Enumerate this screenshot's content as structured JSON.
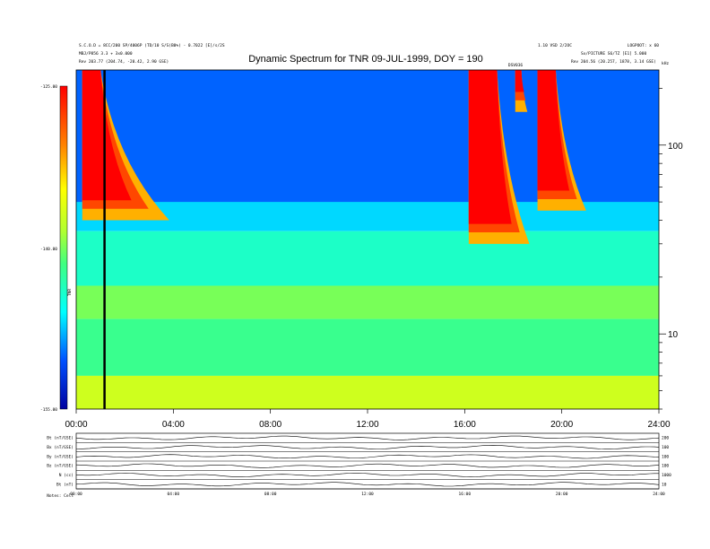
{
  "chart_data": {
    "type": "heatmap",
    "title": "Dynamic Spectrum for TNR 09-JUL-1999, DOY = 190",
    "header_left": [
      "S.C.O.D = 8CC/200 SP/4006P (TD/10 S/S(B0%) - 0.7022 [E]/s/2S",
      "MBJ/P856 3.3 + 3x0.000",
      "Rev    203.77 (204.74, -20.42, 2.90 GSE)"
    ],
    "header_right": [
      "1.10 VSD 2/2OC",
      "LOGPOOT: x 60",
      "Sx/PICTURE S6/TZ [E1] 5.000",
      "Rev    204.56 (20.257, 1878, 3.14 GSE)"
    ],
    "colorbar": {
      "label": "TNR",
      "max_label": "-125.00",
      "mid_label": "-140.00",
      "min_label": "-155.00",
      "range": [
        -155,
        -125
      ]
    },
    "x_tick_labels": [
      "00:00",
      "04:00",
      "08:00",
      "12:00",
      "16:00",
      "20:00",
      "24:00"
    ],
    "xlim": [
      "00:00",
      "24:00"
    ],
    "y_axis": {
      "scale": "log",
      "unit": "kHz",
      "tick_labels": [
        "100",
        "10"
      ],
      "ylim": [
        4,
        250
      ]
    },
    "event_marker_label": "DSV036",
    "vertical_marker_time": "01:10",
    "bands": [
      {
        "name": "high",
        "f_range": [
          40,
          250
        ],
        "level": -150
      },
      {
        "name": "cyan",
        "f_range": [
          35,
          50
        ],
        "level": -147
      },
      {
        "name": "green",
        "f_range": [
          18,
          35
        ],
        "level": -144
      },
      {
        "name": "yellow",
        "f_range": [
          12,
          18
        ],
        "level": -140
      },
      {
        "name": "low",
        "f_range": [
          6,
          12
        ],
        "level": -142
      },
      {
        "name": "floor",
        "f_range": [
          4,
          6
        ],
        "level": -137
      }
    ],
    "bursts": [
      {
        "start": "00:15",
        "peak": "01:00",
        "end": "03:50",
        "f_low": 40
      },
      {
        "start": "16:10",
        "peak": "17:20",
        "end": "18:40",
        "f_low": 30
      },
      {
        "start": "18:05",
        "peak": "18:20",
        "end": "18:35",
        "f_low": 150
      },
      {
        "start": "19:00",
        "peak": "19:45",
        "end": "21:00",
        "f_low": 45
      }
    ],
    "lower_panel": {
      "left_labels": [
        "Bt (nT/GSE)",
        "Bx (nT/GSE)",
        "By (nT/GSE)",
        "Bz (nT/GSE)",
        "N (cc)",
        "Bt (nT)",
        "Notes: Cell"
      ],
      "right_labels": [
        "200",
        "100",
        "100",
        "100",
        "1000",
        "10",
        "0"
      ],
      "x_tick_labels": [
        "00:00",
        "04:00",
        "08:00",
        "12:00",
        "16:00",
        "20:00",
        "24:00"
      ]
    }
  }
}
